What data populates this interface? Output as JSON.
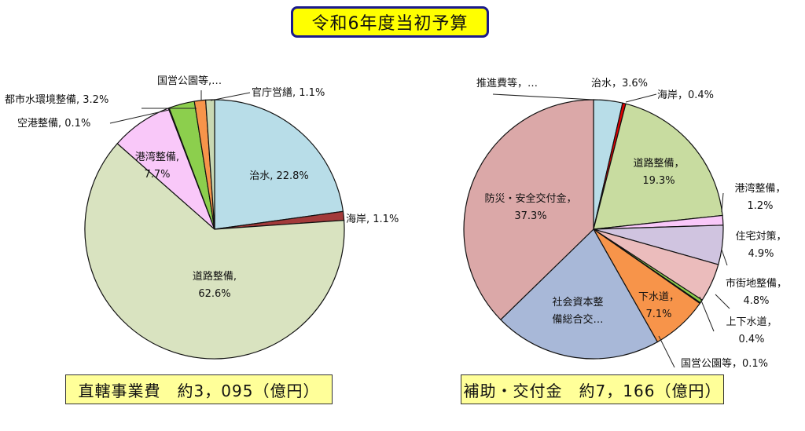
{
  "header": {
    "title": "令和6年度当初予算"
  },
  "totals": {
    "left": "直轄事業費　約3，095（億円）",
    "right": "補助・交付金　約7，166（億円）"
  },
  "chart_data": [
    {
      "type": "pie",
      "title": "直轄事業費 約3,095（億円）",
      "unit": "%",
      "start": "top, clockwise",
      "categories": [
        "治水",
        "海岸",
        "道路整備",
        "港湾整備",
        "空港整備",
        "都市水環境整備",
        "国営公園等",
        "官庁営繕"
      ],
      "values": [
        22.8,
        1.1,
        62.6,
        7.7,
        0.1,
        3.2,
        1.4,
        1.1
      ],
      "colors": [
        "#b8dde8",
        "#a33a3a",
        "#d9e3c0",
        "#f9c8f9",
        "#8fb3ff",
        "#8ccf4d",
        "#f7944a",
        "#c9d8b3"
      ],
      "labels": [
        "治水, 22.8%",
        "海岸, 1.1%",
        "道路整備,|62.6%",
        "港湾整備,|7.7%",
        "空港整備, 0.1%",
        "都市水環境整備, 3.2%",
        "国営公園等,…",
        "官庁営繕, 1.1%"
      ]
    },
    {
      "type": "pie",
      "title": "補助・交付金 約7,166（億円）",
      "unit": "%",
      "start": "top, clockwise",
      "categories": [
        "治水",
        "海岸",
        "道路整備",
        "港湾整備",
        "住宅対策",
        "市街地整備",
        "上下水道",
        "国営公園等",
        "下水道",
        "社会資本整備総合交付金",
        "防災・安全交付金",
        "推進費等"
      ],
      "values": [
        3.6,
        0.4,
        19.3,
        1.2,
        4.9,
        4.8,
        0.4,
        0.1,
        7.1,
        20.9,
        37.3,
        0.0
      ],
      "colors": [
        "#b8dde8",
        "#e00000",
        "#c8dca0",
        "#f9c8f9",
        "#d0c4e0",
        "#ebbcbc",
        "#8ccf4d",
        "#3a8a3a",
        "#f7944a",
        "#a8b8d8",
        "#dba8a8",
        "#ffffff"
      ],
      "labels": [
        "治水，3.6%",
        "海岸，0.4%",
        "道路整備，|19.3%",
        "港湾整備，|1.2%",
        "住宅対策，|4.9%",
        "市街地整備，|4.8%",
        "上下水道，|0.4%",
        "国営公園等，0.1%",
        "下水道，|7.1%",
        "社会資本整|備総合交…",
        "防災・安全交付金，|37.3%",
        "推進費等，…"
      ]
    }
  ]
}
